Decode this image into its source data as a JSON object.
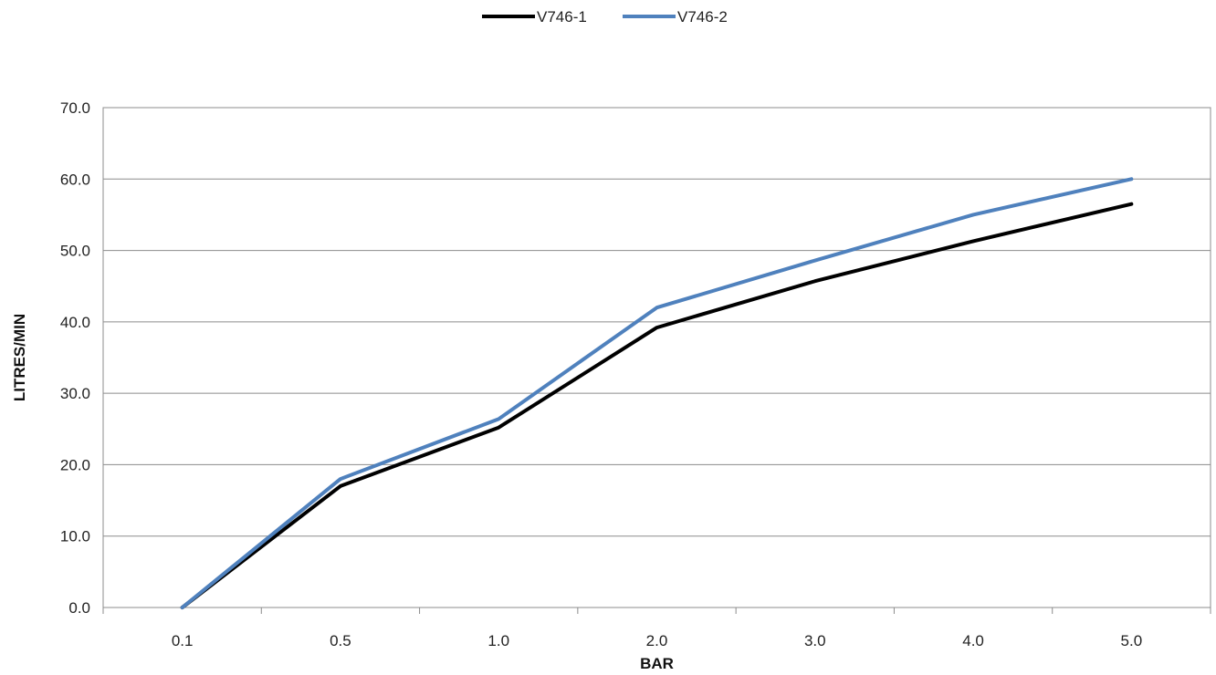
{
  "chart_data": {
    "type": "line",
    "title": "",
    "xlabel": "BAR",
    "ylabel": "LITRES/MIN",
    "categories": [
      "0.1",
      "0.5",
      "1.0",
      "2.0",
      "3.0",
      "4.0",
      "5.0"
    ],
    "y_ticks": [
      "0.0",
      "10.0",
      "20.0",
      "30.0",
      "40.0",
      "50.0",
      "60.0",
      "70.0"
    ],
    "ylim": [
      0,
      70
    ],
    "grid": true,
    "legend_position": "top-center",
    "series": [
      {
        "name": "V746-1",
        "color": "#000000",
        "values": [
          0,
          17.0,
          25.2,
          39.2,
          45.7,
          51.3,
          56.5
        ]
      },
      {
        "name": "V746-2",
        "color": "#4f81bd",
        "values": [
          0,
          18.0,
          26.4,
          42.0,
          48.6,
          55.0,
          60.0
        ]
      }
    ]
  }
}
